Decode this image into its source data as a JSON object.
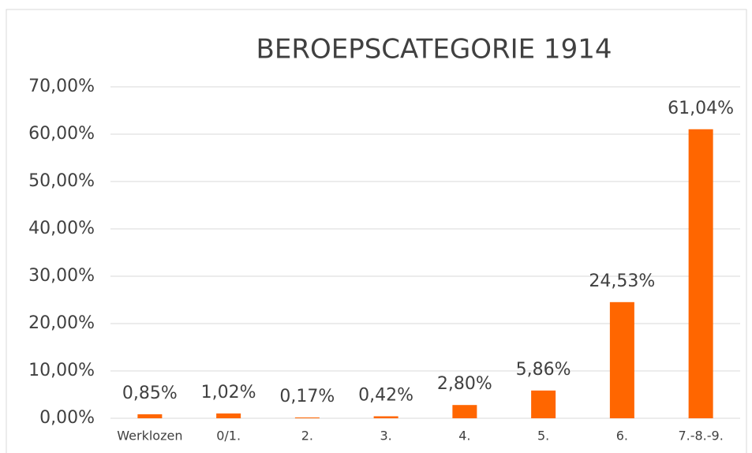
{
  "chart_data": {
    "type": "bar",
    "title": "BEROEPSCATEGORIE 1914",
    "categories": [
      "Werklozen",
      "0/1.",
      "2.",
      "3.",
      "4.",
      "5.",
      "6.",
      "7.-8.-9."
    ],
    "values": [
      0.85,
      1.02,
      0.17,
      0.42,
      2.8,
      5.86,
      24.53,
      61.04
    ],
    "value_labels": [
      "0,85%",
      "1,02%",
      "0,17%",
      "0,42%",
      "2,80%",
      "5,86%",
      "24,53%",
      "61,04%"
    ],
    "color": "#ff6600",
    "ylim": [
      0,
      70
    ],
    "yticks": [
      {
        "value": 0,
        "label": "0,00%"
      },
      {
        "value": 10,
        "label": "10,00%"
      },
      {
        "value": 20,
        "label": "20,00%"
      },
      {
        "value": 30,
        "label": "30,00%"
      },
      {
        "value": 40,
        "label": "40,00%"
      },
      {
        "value": 50,
        "label": "50,00%"
      },
      {
        "value": 60,
        "label": "60,00%"
      },
      {
        "value": 70,
        "label": "70,00%"
      }
    ],
    "grid": true
  }
}
